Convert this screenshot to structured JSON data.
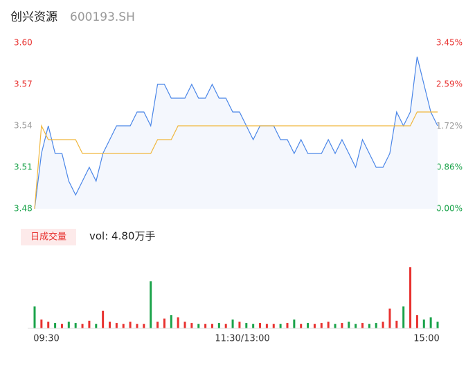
{
  "header": {
    "name": "创兴资源",
    "code": "600193.SH"
  },
  "chart_data": {
    "type": "line",
    "base": 3.54,
    "up_color": "#e8312f",
    "down_color": "#1aa34a",
    "flat_color": "#999999",
    "ylim": [
      3.48,
      3.6
    ],
    "yticks": [
      {
        "value": 3.6,
        "label": "3.60"
      },
      {
        "value": 3.57,
        "label": "3.57"
      },
      {
        "value": 3.54,
        "label": "3.54"
      },
      {
        "value": 3.51,
        "label": "3.51"
      },
      {
        "value": 3.48,
        "label": "3.48"
      }
    ],
    "y2lim": [
      0,
      3.45
    ],
    "y2ticks": [
      {
        "value": 3.45,
        "label": "3.45%"
      },
      {
        "value": 2.59,
        "label": "2.59%"
      },
      {
        "value": 1.72,
        "label": "1.72%"
      },
      {
        "value": 0.86,
        "label": "0.86%"
      },
      {
        "value": 0,
        "label": "0.00%"
      }
    ],
    "x_labels": [
      "09:30",
      "11:30/13:00",
      "15:00"
    ],
    "series": [
      {
        "color": "#4a86e8",
        "values": [
          3.48,
          3.52,
          3.54,
          3.52,
          3.52,
          3.5,
          3.49,
          3.5,
          3.51,
          3.5,
          3.52,
          3.53,
          3.54,
          3.54,
          3.54,
          3.55,
          3.55,
          3.54,
          3.57,
          3.57,
          3.56,
          3.56,
          3.56,
          3.57,
          3.56,
          3.56,
          3.57,
          3.56,
          3.56,
          3.55,
          3.55,
          3.54,
          3.53,
          3.54,
          3.54,
          3.54,
          3.53,
          3.53,
          3.52,
          3.53,
          3.52,
          3.52,
          3.52,
          3.53,
          3.52,
          3.53,
          3.52,
          3.51,
          3.53,
          3.52,
          3.51,
          3.51,
          3.52,
          3.55,
          3.54,
          3.55,
          3.59,
          3.57,
          3.55,
          3.54
        ]
      },
      {
        "color": "#f0b73d",
        "values": [
          3.48,
          3.54,
          3.53,
          3.53,
          3.53,
          3.53,
          3.53,
          3.52,
          3.52,
          3.52,
          3.52,
          3.52,
          3.52,
          3.52,
          3.52,
          3.52,
          3.52,
          3.52,
          3.53,
          3.53,
          3.53,
          3.54,
          3.54,
          3.54,
          3.54,
          3.54,
          3.54,
          3.54,
          3.54,
          3.54,
          3.54,
          3.54,
          3.54,
          3.54,
          3.54,
          3.54,
          3.54,
          3.54,
          3.54,
          3.54,
          3.54,
          3.54,
          3.54,
          3.54,
          3.54,
          3.54,
          3.54,
          3.54,
          3.54,
          3.54,
          3.54,
          3.54,
          3.54,
          3.54,
          3.54,
          3.54,
          3.55,
          3.55,
          3.55,
          3.55
        ]
      }
    ],
    "volume": {
      "label": "日成交量",
      "summary": "vol: 4.80万手",
      "ylim": [
        0,
        3000
      ],
      "values": [
        1000,
        400,
        300,
        250,
        200,
        300,
        250,
        200,
        350,
        200,
        800,
        300,
        250,
        200,
        300,
        200,
        200,
        2150,
        300,
        450,
        600,
        500,
        300,
        250,
        200,
        200,
        200,
        250,
        200,
        400,
        300,
        250,
        200,
        250,
        200,
        200,
        200,
        250,
        400,
        200,
        250,
        200,
        250,
        300,
        200,
        250,
        300,
        200,
        250,
        200,
        250,
        300,
        900,
        350,
        1000,
        2800,
        600,
        400,
        500,
        300
      ]
    }
  }
}
